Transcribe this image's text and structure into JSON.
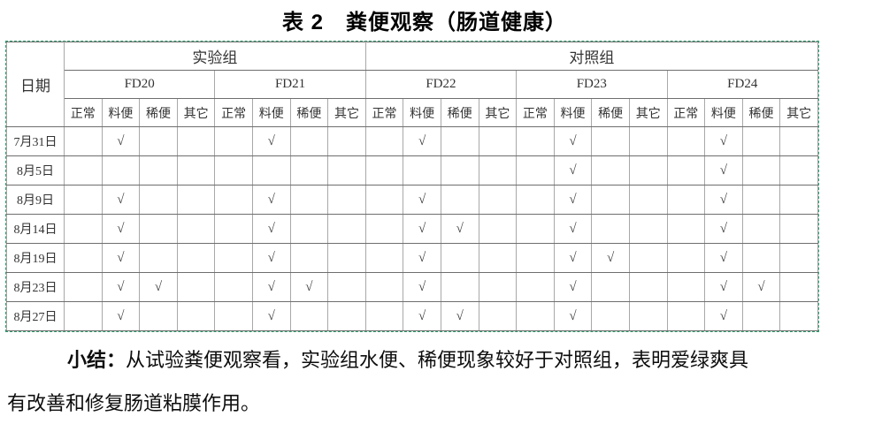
{
  "title": "表 2　粪便观察（肠道健康）",
  "table": {
    "date_header": "日期",
    "groups": [
      {
        "label": "实验组",
        "subjects": [
          "FD20",
          "FD21"
        ]
      },
      {
        "label": "对照组",
        "subjects": [
          "FD22",
          "FD23",
          "FD24"
        ]
      }
    ],
    "sub_columns": [
      "正常",
      "料便",
      "稀便",
      "其它"
    ],
    "check_mark": "√",
    "rows": [
      {
        "date": "7月31日",
        "cells": [
          "",
          "√",
          "",
          "",
          "",
          "√",
          "",
          "",
          "",
          "√",
          "",
          "",
          "",
          "√",
          "",
          "",
          "",
          "√",
          "",
          ""
        ]
      },
      {
        "date": "8月5日",
        "cells": [
          "",
          "",
          "",
          "",
          "",
          "",
          "",
          "",
          "",
          "",
          "",
          "",
          "",
          "√",
          "",
          "",
          "",
          "√",
          "",
          ""
        ]
      },
      {
        "date": "8月9日",
        "cells": [
          "",
          "√",
          "",
          "",
          "",
          "√",
          "",
          "",
          "",
          "√",
          "",
          "",
          "",
          "√",
          "",
          "",
          "",
          "√",
          "",
          ""
        ]
      },
      {
        "date": "8月14日",
        "cells": [
          "",
          "√",
          "",
          "",
          "",
          "√",
          "",
          "",
          "",
          "√",
          "√",
          "",
          "",
          "√",
          "",
          "",
          "",
          "√",
          "",
          ""
        ]
      },
      {
        "date": "8月19日",
        "cells": [
          "",
          "√",
          "",
          "",
          "",
          "√",
          "",
          "",
          "",
          "√",
          "",
          "",
          "",
          "√",
          "√",
          "",
          "",
          "√",
          "",
          ""
        ]
      },
      {
        "date": "8月23日",
        "cells": [
          "",
          "√",
          "√",
          "",
          "",
          "√",
          "√",
          "",
          "",
          "√",
          "",
          "",
          "",
          "√",
          "",
          "",
          "",
          "√",
          "√",
          ""
        ]
      },
      {
        "date": "8月27日",
        "cells": [
          "",
          "√",
          "",
          "",
          "",
          "√",
          "",
          "",
          "",
          "√",
          "√",
          "",
          "",
          "√",
          "",
          "",
          "",
          "√",
          "",
          ""
        ]
      }
    ]
  },
  "summary": {
    "label": "小结：",
    "line1": "从试验粪便观察看，实验组水便、稀便现象较好于对照组，表明爱绿爽具",
    "line2": "有改善和修复肠道粘膜作用。"
  },
  "colors": {
    "selection_border": "#2f9e6e",
    "grid_line": "#a8a8a8",
    "grid_line_dark": "#2b2b2b",
    "text": "#2f2f2f"
  }
}
